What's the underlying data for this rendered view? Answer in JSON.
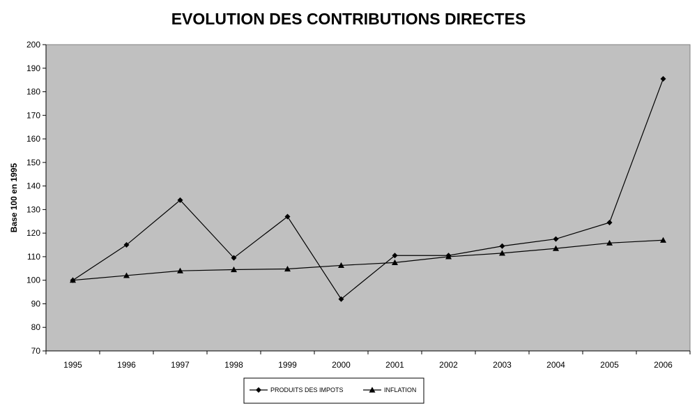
{
  "chart_data": {
    "type": "line",
    "title": "EVOLUTION DES CONTRIBUTIONS DIRECTES",
    "xlabel": "",
    "ylabel": "Base 100 en 1995",
    "categories": [
      "1995",
      "1996",
      "1997",
      "1998",
      "1999",
      "2000",
      "2001",
      "2002",
      "2003",
      "2004",
      "2005",
      "2006"
    ],
    "ylim": [
      70,
      200
    ],
    "yticks": [
      70,
      80,
      90,
      100,
      110,
      120,
      130,
      140,
      150,
      160,
      170,
      180,
      190,
      200
    ],
    "grid": false,
    "legend_position": "bottom",
    "series": [
      {
        "name": "PRODUITS DES IMPOTS",
        "marker": "diamond",
        "values": [
          100,
          115,
          134,
          109.5,
          127,
          92,
          110.5,
          110.5,
          114.5,
          117.5,
          124.5,
          185.5
        ]
      },
      {
        "name": "INFLATION",
        "marker": "triangle",
        "values": [
          100,
          102,
          104,
          104.5,
          104.8,
          106.3,
          107.5,
          110,
          111.5,
          113.5,
          115.8,
          117
        ]
      }
    ],
    "colors": {
      "plot_background": "#c0c0c0",
      "line": "#000000",
      "background": "#ffffff"
    }
  }
}
